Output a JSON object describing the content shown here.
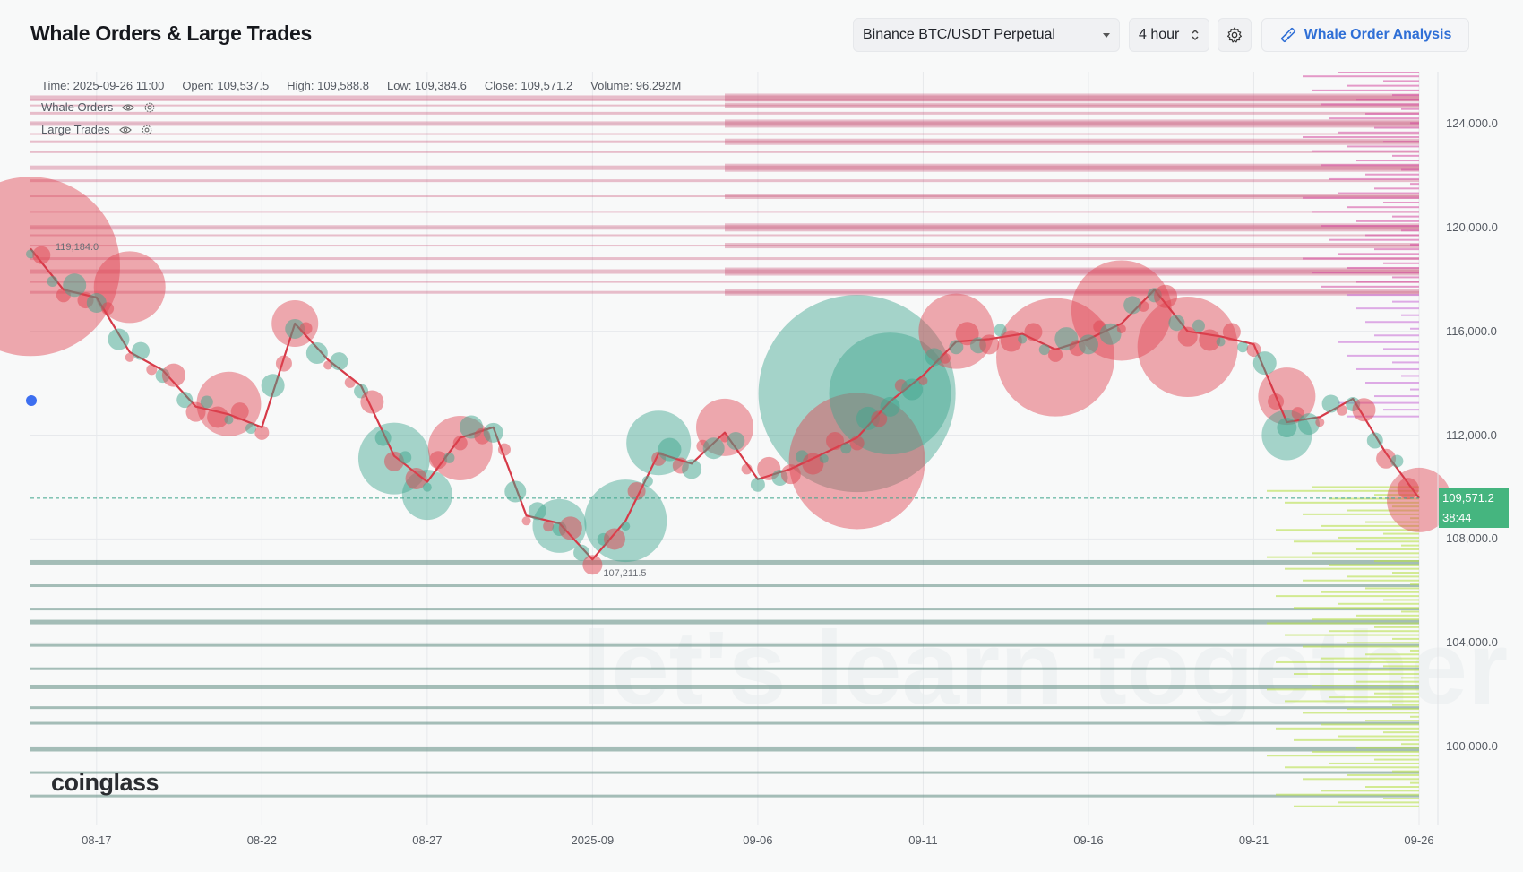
{
  "header": {
    "title": "Whale Orders & Large Trades",
    "pair_select": "Binance BTC/USDT Perpetual",
    "interval_select": "4 hour",
    "analysis_button": "Whale Order Analysis"
  },
  "legend": {
    "time": "Time: 2025-09-26 11:00",
    "open": "Open: 109,537.5",
    "high": "High: 109,588.8",
    "low": "Low: 109,384.6",
    "close": "Close: 109,571.2",
    "volume": "Volume: 96.292M",
    "series": [
      {
        "label": "Whale Orders"
      },
      {
        "label": "Large Trades"
      }
    ]
  },
  "icons": {
    "settings": "gear-icon",
    "analysis": "ruler-pencil-icon",
    "visibility": "eye-icon",
    "series_settings": "gear-icon",
    "select": "chevron-down-icon",
    "stepper": "up-down-icon"
  },
  "price_label": {
    "value": "109,571.2",
    "countdown": "38:44"
  },
  "annotations": {
    "high": "119,184.0",
    "low": "107,211.5"
  },
  "watermark": "let's learn together",
  "brand": "coinglass",
  "colors": {
    "ask": "#c94d72",
    "bid": "#5e8c82",
    "buy": "#3fa58d",
    "sell": "#e0434f",
    "live_price": "#45b57f",
    "accent": "#2f6fd6"
  },
  "chart_data": {
    "type": "scatter",
    "title": "",
    "yaxis": {
      "ticks": [
        "124,000.0",
        "120,000.0",
        "116,000.0",
        "112,000.0",
        "108,000.0",
        "104,000.0",
        "100,000.0"
      ],
      "range": [
        97000,
        126000
      ]
    },
    "xaxis": {
      "ticks": [
        "08-17",
        "08-22",
        "08-27",
        "2025-09",
        "09-06",
        "09-11",
        "09-16",
        "09-21",
        "09-26"
      ],
      "range": [
        "2025-08-15",
        "2025-09-26"
      ]
    },
    "grid": true,
    "price_path": [
      {
        "date": "2025-08-15",
        "price": 119184
      },
      {
        "date": "2025-08-16",
        "price": 117600
      },
      {
        "date": "2025-08-17",
        "price": 117300
      },
      {
        "date": "2025-08-18",
        "price": 115200
      },
      {
        "date": "2025-08-19",
        "price": 114500
      },
      {
        "date": "2025-08-20",
        "price": 113100
      },
      {
        "date": "2025-08-21",
        "price": 112800
      },
      {
        "date": "2025-08-22",
        "price": 112300
      },
      {
        "date": "2025-08-23",
        "price": 116300
      },
      {
        "date": "2025-08-24",
        "price": 114900
      },
      {
        "date": "2025-08-25",
        "price": 113900
      },
      {
        "date": "2025-08-26",
        "price": 111200
      },
      {
        "date": "2025-08-27",
        "price": 110200
      },
      {
        "date": "2025-08-28",
        "price": 111900
      },
      {
        "date": "2025-08-29",
        "price": 112300
      },
      {
        "date": "2025-08-30",
        "price": 108900
      },
      {
        "date": "2025-08-31",
        "price": 108600
      },
      {
        "date": "2025-09-01",
        "price": 107211.5
      },
      {
        "date": "2025-09-02",
        "price": 108700
      },
      {
        "date": "2025-09-03",
        "price": 111300
      },
      {
        "date": "2025-09-04",
        "price": 110900
      },
      {
        "date": "2025-09-05",
        "price": 112100
      },
      {
        "date": "2025-09-06",
        "price": 110300
      },
      {
        "date": "2025-09-07",
        "price": 110700
      },
      {
        "date": "2025-09-08",
        "price": 111300
      },
      {
        "date": "2025-09-09",
        "price": 111900
      },
      {
        "date": "2025-09-10",
        "price": 113300
      },
      {
        "date": "2025-09-11",
        "price": 114300
      },
      {
        "date": "2025-09-12",
        "price": 115600
      },
      {
        "date": "2025-09-13",
        "price": 115700
      },
      {
        "date": "2025-09-14",
        "price": 115900
      },
      {
        "date": "2025-09-15",
        "price": 115300
      },
      {
        "date": "2025-09-16",
        "price": 115700
      },
      {
        "date": "2025-09-17",
        "price": 116300
      },
      {
        "date": "2025-09-18",
        "price": 117600
      },
      {
        "date": "2025-09-19",
        "price": 116000
      },
      {
        "date": "2025-09-20",
        "price": 115800
      },
      {
        "date": "2025-09-21",
        "price": 115500
      },
      {
        "date": "2025-09-22",
        "price": 112500
      },
      {
        "date": "2025-09-23",
        "price": 112700
      },
      {
        "date": "2025-09-24",
        "price": 113400
      },
      {
        "date": "2025-09-25",
        "price": 111300
      },
      {
        "date": "2025-09-26",
        "price": 109571.2
      }
    ],
    "large_trades": [
      {
        "date": "2025-08-15",
        "price": 118500,
        "side": "sell",
        "size": 5
      },
      {
        "date": "2025-08-18",
        "price": 117700,
        "side": "sell",
        "size": 2
      },
      {
        "date": "2025-08-21",
        "price": 113200,
        "side": "sell",
        "size": 1.8
      },
      {
        "date": "2025-08-23",
        "price": 116300,
        "side": "sell",
        "size": 1.3
      },
      {
        "date": "2025-08-26",
        "price": 111100,
        "side": "buy",
        "size": 2
      },
      {
        "date": "2025-08-27",
        "price": 109700,
        "side": "buy",
        "size": 1.4
      },
      {
        "date": "2025-08-28",
        "price": 111500,
        "side": "sell",
        "size": 1.8
      },
      {
        "date": "2025-08-31",
        "price": 108500,
        "side": "buy",
        "size": 1.5
      },
      {
        "date": "2025-09-02",
        "price": 108700,
        "side": "buy",
        "size": 2.3
      },
      {
        "date": "2025-09-03",
        "price": 111700,
        "side": "buy",
        "size": 1.8
      },
      {
        "date": "2025-09-05",
        "price": 112300,
        "side": "sell",
        "size": 1.6
      },
      {
        "date": "2025-09-09",
        "price": 113600,
        "side": "buy",
        "size": 5.5
      },
      {
        "date": "2025-09-09",
        "price": 111000,
        "side": "sell",
        "size": 3.8
      },
      {
        "date": "2025-09-10",
        "price": 113600,
        "side": "buy",
        "size": 3.4
      },
      {
        "date": "2025-09-12",
        "price": 116000,
        "side": "sell",
        "size": 2.1
      },
      {
        "date": "2025-09-15",
        "price": 115000,
        "side": "sell",
        "size": 3.3
      },
      {
        "date": "2025-09-17",
        "price": 116800,
        "side": "sell",
        "size": 2.8
      },
      {
        "date": "2025-09-19",
        "price": 115400,
        "side": "sell",
        "size": 2.8
      },
      {
        "date": "2025-09-22",
        "price": 113500,
        "side": "sell",
        "size": 1.6
      },
      {
        "date": "2025-09-22",
        "price": 112000,
        "side": "buy",
        "size": 1.4
      },
      {
        "date": "2025-09-26",
        "price": 109500,
        "side": "sell",
        "size": 1.8
      }
    ],
    "whale_orders": {
      "asks": [
        125000,
        124900,
        124700,
        124400,
        124000,
        123600,
        123300,
        122900,
        122300,
        121800,
        121200,
        120600,
        120000,
        119700,
        119300,
        118800,
        118300,
        117900,
        117500
      ],
      "bids": [
        107100,
        106200,
        105300,
        104800,
        103900,
        103000,
        102300,
        101500,
        100900,
        99900,
        99000,
        98100
      ]
    }
  }
}
